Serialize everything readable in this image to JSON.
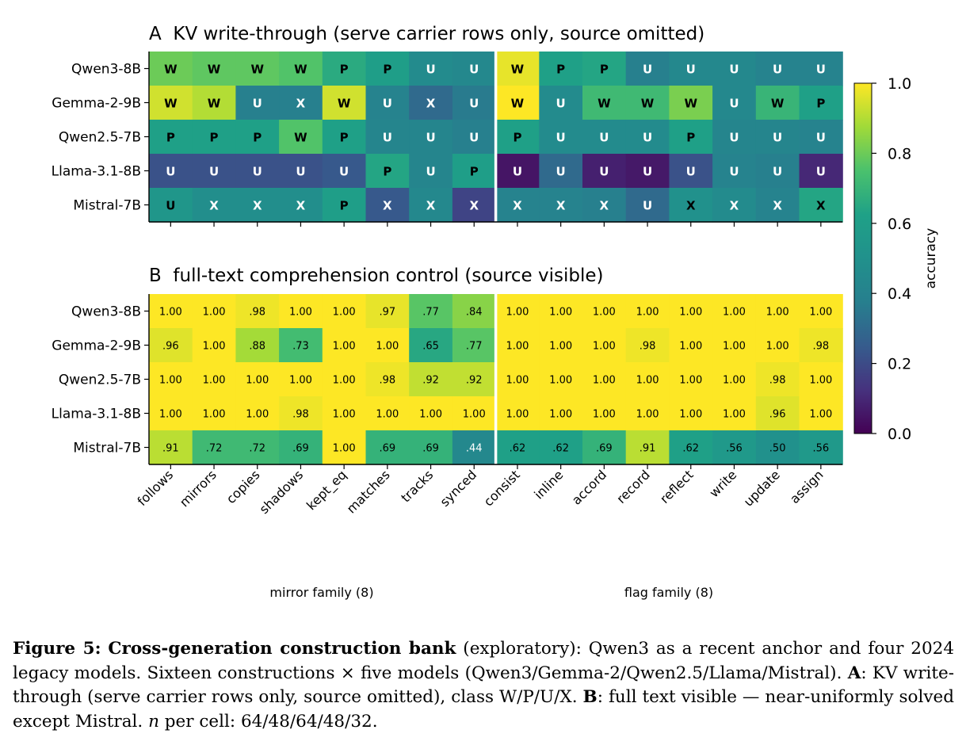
{
  "chart_data": {
    "type": "heatmap",
    "panels": [
      {
        "title": "A  KV write-through (serve carrier rows only, source omitted)",
        "cell_label_kind": "class",
        "rows": [
          "Qwen3-8B",
          "Gemma-2-9B",
          "Qwen2.5-7B",
          "Llama-3.1-8B",
          "Mistral-7B"
        ],
        "columns": [
          "follows",
          "mirrors",
          "copies",
          "shadows",
          "kept_eq",
          "matches",
          "tracks",
          "synced",
          "consist",
          "inline",
          "accord",
          "record",
          "reflect",
          "write",
          "update",
          "assign"
        ],
        "labels": [
          [
            "W",
            "W",
            "W",
            "W",
            "P",
            "P",
            "U",
            "U",
            "W",
            "P",
            "P",
            "U",
            "U",
            "U",
            "U",
            "U"
          ],
          [
            "W",
            "W",
            "U",
            "X",
            "W",
            "U",
            "X",
            "U",
            "W",
            "U",
            "W",
            "W",
            "W",
            "U",
            "W",
            "P"
          ],
          [
            "P",
            "P",
            "P",
            "W",
            "P",
            "U",
            "U",
            "U",
            "P",
            "U",
            "U",
            "U",
            "P",
            "U",
            "U",
            "U"
          ],
          [
            "U",
            "U",
            "U",
            "U",
            "U",
            "P",
            "U",
            "P",
            "U",
            "U",
            "U",
            "U",
            "U",
            "U",
            "U",
            "U"
          ],
          [
            "U",
            "X",
            "X",
            "X",
            "P",
            "X",
            "X",
            "X",
            "X",
            "X",
            "X",
            "U",
            "X",
            "X",
            "X",
            "X"
          ]
        ],
        "values": [
          [
            0.8,
            0.78,
            0.78,
            0.76,
            0.66,
            0.6,
            0.46,
            0.44,
            0.97,
            0.62,
            0.64,
            0.38,
            0.44,
            0.44,
            0.4,
            0.4
          ],
          [
            0.94,
            0.9,
            0.38,
            0.38,
            0.94,
            0.4,
            0.3,
            0.36,
            1.0,
            0.46,
            0.72,
            0.72,
            0.82,
            0.44,
            0.7,
            0.62
          ],
          [
            0.62,
            0.62,
            0.62,
            0.76,
            0.62,
            0.42,
            0.42,
            0.38,
            0.62,
            0.46,
            0.46,
            0.46,
            0.62,
            0.42,
            0.42,
            0.4
          ],
          [
            0.22,
            0.22,
            0.22,
            0.22,
            0.24,
            0.64,
            0.42,
            0.6,
            0.05,
            0.3,
            0.08,
            0.06,
            0.22,
            0.4,
            0.38,
            0.1
          ],
          [
            0.54,
            0.48,
            0.48,
            0.48,
            0.6,
            0.24,
            0.44,
            0.18,
            0.4,
            0.4,
            0.38,
            0.3,
            0.5,
            0.46,
            0.4,
            0.64
          ]
        ]
      },
      {
        "title": "B  full-text comprehension control (source visible)",
        "cell_label_kind": "value",
        "rows": [
          "Qwen3-8B",
          "Gemma-2-9B",
          "Qwen2.5-7B",
          "Llama-3.1-8B",
          "Mistral-7B"
        ],
        "columns": [
          "follows",
          "mirrors",
          "copies",
          "shadows",
          "kept_eq",
          "matches",
          "tracks",
          "synced",
          "consist",
          "inline",
          "accord",
          "record",
          "reflect",
          "write",
          "update",
          "assign"
        ],
        "labels": [
          [
            "1.00",
            "1.00",
            ".98",
            "1.00",
            "1.00",
            ".97",
            ".77",
            ".84",
            "1.00",
            "1.00",
            "1.00",
            "1.00",
            "1.00",
            "1.00",
            "1.00",
            "1.00"
          ],
          [
            ".96",
            "1.00",
            ".88",
            ".73",
            "1.00",
            "1.00",
            ".65",
            ".77",
            "1.00",
            "1.00",
            "1.00",
            ".98",
            "1.00",
            "1.00",
            "1.00",
            ".98"
          ],
          [
            "1.00",
            "1.00",
            "1.00",
            "1.00",
            "1.00",
            ".98",
            ".92",
            ".92",
            "1.00",
            "1.00",
            "1.00",
            "1.00",
            "1.00",
            "1.00",
            ".98",
            "1.00"
          ],
          [
            "1.00",
            "1.00",
            "1.00",
            ".98",
            "1.00",
            "1.00",
            "1.00",
            "1.00",
            "1.00",
            "1.00",
            "1.00",
            "1.00",
            "1.00",
            "1.00",
            ".96",
            "1.00"
          ],
          [
            ".91",
            ".72",
            ".72",
            ".69",
            "1.00",
            ".69",
            ".69",
            ".44",
            ".62",
            ".62",
            ".69",
            ".91",
            ".62",
            ".56",
            ".50",
            ".56"
          ]
        ],
        "values": [
          [
            1.0,
            1.0,
            0.98,
            1.0,
            1.0,
            0.97,
            0.77,
            0.84,
            1.0,
            1.0,
            1.0,
            1.0,
            1.0,
            1.0,
            1.0,
            1.0
          ],
          [
            0.96,
            1.0,
            0.88,
            0.73,
            1.0,
            1.0,
            0.65,
            0.77,
            1.0,
            1.0,
            1.0,
            0.98,
            1.0,
            1.0,
            1.0,
            0.98
          ],
          [
            1.0,
            1.0,
            1.0,
            1.0,
            1.0,
            0.98,
            0.92,
            0.92,
            1.0,
            1.0,
            1.0,
            1.0,
            1.0,
            1.0,
            0.98,
            1.0
          ],
          [
            1.0,
            1.0,
            1.0,
            0.98,
            1.0,
            1.0,
            1.0,
            1.0,
            1.0,
            1.0,
            1.0,
            1.0,
            1.0,
            1.0,
            0.96,
            1.0
          ],
          [
            0.91,
            0.72,
            0.72,
            0.69,
            1.0,
            0.69,
            0.69,
            0.44,
            0.62,
            0.62,
            0.69,
            0.91,
            0.62,
            0.56,
            0.5,
            0.56
          ]
        ]
      }
    ],
    "family_labels": [
      "mirror family (8)",
      "flag family (8)"
    ],
    "family_split_after_column": 8,
    "colorbar": {
      "label": "accuracy",
      "range": [
        0.0,
        1.0
      ],
      "ticks": [
        "0.0",
        "0.2",
        "0.4",
        "0.6",
        "0.8",
        "1.0"
      ],
      "colormap": "viridis"
    }
  },
  "caption": {
    "fig_label": "Figure 5:",
    "title": "Cross-generation construction bank",
    "text1": " (exploratory): Qwen3 as a recent anchor and four 2024 legacy models. Sixteen constructions × five models (Qwen3/Gemma-2/Qwen2.5/Llama/Mistral). ",
    "a_label": "A",
    "text2": ": KV write-through (serve carrier rows only, source omitted), class W/P/U/X. ",
    "b_label": "B",
    "text3": ": full text visible — near-uniformly solved except Mistral. ",
    "n_symbol": "n",
    "text4": " per cell: 64/48/64/48/32."
  }
}
